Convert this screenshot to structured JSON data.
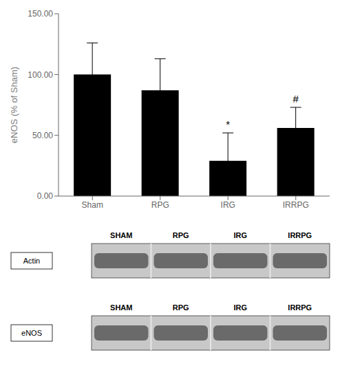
{
  "chart_data": {
    "type": "bar",
    "categories": [
      "Sham",
      "RPG",
      "IRG",
      "IRRPG"
    ],
    "values": [
      100.0,
      87.0,
      29.0,
      56.0
    ],
    "error": [
      26.0,
      26.0,
      23.0,
      17.0
    ],
    "color": "#000000",
    "ylabel": "eNOS (% of Sham)",
    "ylim": [
      0,
      150
    ],
    "yticks": [
      {
        "value": 0,
        "label": "0.00"
      },
      {
        "value": 50,
        "label": "50.00"
      },
      {
        "value": 100,
        "label": "100.00"
      },
      {
        "value": 150,
        "label": "150.00"
      }
    ],
    "annotations": [
      {
        "text": "*",
        "x": "IRG",
        "y": 53
      },
      {
        "text": "#",
        "x": "IRRPG",
        "y": 74
      }
    ],
    "blots": [
      {
        "label": "Actin",
        "lanes": [
          "SHAM",
          "RPG",
          "IRG",
          "IRRPG"
        ]
      },
      {
        "label": "eNOS",
        "lanes": [
          "SHAM",
          "RPG",
          "IRG",
          "IRRPG"
        ]
      }
    ]
  }
}
